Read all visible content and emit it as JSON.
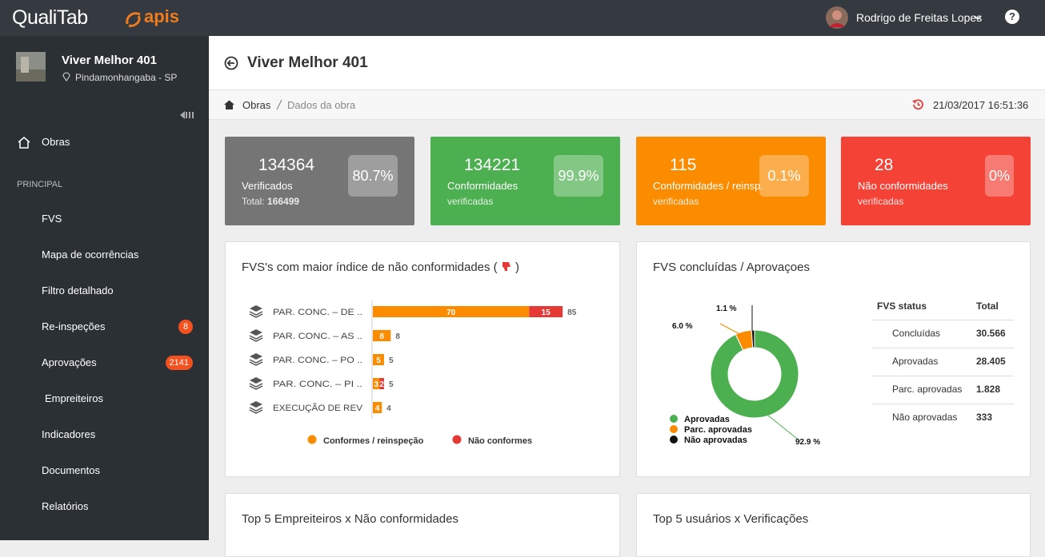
{
  "header": {
    "brand": "QualiTab",
    "partner": "apis",
    "user": "Rodrigo de Freitas Lopes",
    "help": "?"
  },
  "sidebar": {
    "project": "Viver Melhor 401",
    "location": "Pindamonhangaba - SP",
    "home": "Obras",
    "section": "PRINCIPAL",
    "items": [
      {
        "label": "FVS"
      },
      {
        "label": "Mapa de ocorrências"
      },
      {
        "label": "Filtro detalhado"
      },
      {
        "label": "Re-inspeções",
        "badge": 8
      },
      {
        "label": "Aprovações",
        "badge": 2141
      },
      {
        "label": "Empreiteiros"
      },
      {
        "label": "Indicadores",
        "submenu": true
      },
      {
        "label": "Documentos"
      },
      {
        "label": "Relatórios",
        "submenu": true
      }
    ]
  },
  "page": {
    "title": "Viver Melhor 401",
    "breadcrumb": [
      "Obras",
      "Dados da obra"
    ],
    "timestamp": "21/03/2017 16:51:36"
  },
  "cards": [
    {
      "value": 134364,
      "label": "Verificados",
      "sub": "Total:",
      "sub_value": 166499,
      "percent": "80.7%",
      "color": "#757575"
    },
    {
      "value": 134221,
      "label": "Conformidades",
      "sub": "verificadas",
      "percent": "99.9%",
      "color": "#4caf50"
    },
    {
      "value": 115,
      "label": "Conformidades / reinsp.",
      "sub": "verificadas",
      "percent": "0.1%",
      "color": "#fb8c00"
    },
    {
      "value": 28,
      "label": "Não conformidades",
      "sub": "verificadas",
      "percent": "0%",
      "color": "#f44336"
    }
  ],
  "chart_data": [
    {
      "type": "bar",
      "orientation": "horizontal",
      "stacked": true,
      "title": "FVS's com maior índice de não conformidades (",
      "title_end": ")",
      "categories": [
        "PAR. CONC. – DE ..",
        "PAR. CONC. – AS ..",
        "PAR. CONC. – PO ..",
        "PAR. CONC. – PI ..",
        "EXECUÇÃO DE REV"
      ],
      "series": [
        {
          "name": "Conformes / reinspeção",
          "color": "#fb8c00",
          "values": [
            70,
            8,
            5,
            3,
            4
          ]
        },
        {
          "name": "Não conformes",
          "color": "#e53935",
          "values": [
            15,
            0,
            0,
            2,
            0
          ]
        }
      ],
      "totals": [
        85,
        8,
        5,
        5,
        4
      ],
      "xlim": [
        0,
        100
      ]
    },
    {
      "type": "pie",
      "donut": true,
      "title": "FVS concluídas / Aprovaçoes",
      "categories": [
        "Aprovadas",
        "Parc. aprovadas",
        "Não aprovadas"
      ],
      "values": [
        92.9,
        6.0,
        1.1
      ],
      "value_labels": [
        "92.9 %",
        "6.0 %",
        "1.1 %"
      ],
      "colors": [
        "#4caf50",
        "#fb8c00",
        "#111111"
      ]
    }
  ],
  "status_table": {
    "header": [
      "FVS status",
      "Total"
    ],
    "rows": [
      [
        "Concluídas",
        "30.566"
      ],
      [
        "Aprovadas",
        "28.405"
      ],
      [
        "Parc. aprovadas",
        "1.828"
      ],
      [
        "Não aprovadas",
        "333"
      ]
    ]
  },
  "bottom_panels": [
    "Top 5 Empreiteiros x Não conformidades",
    "Top 5 usuários x Verificações"
  ]
}
